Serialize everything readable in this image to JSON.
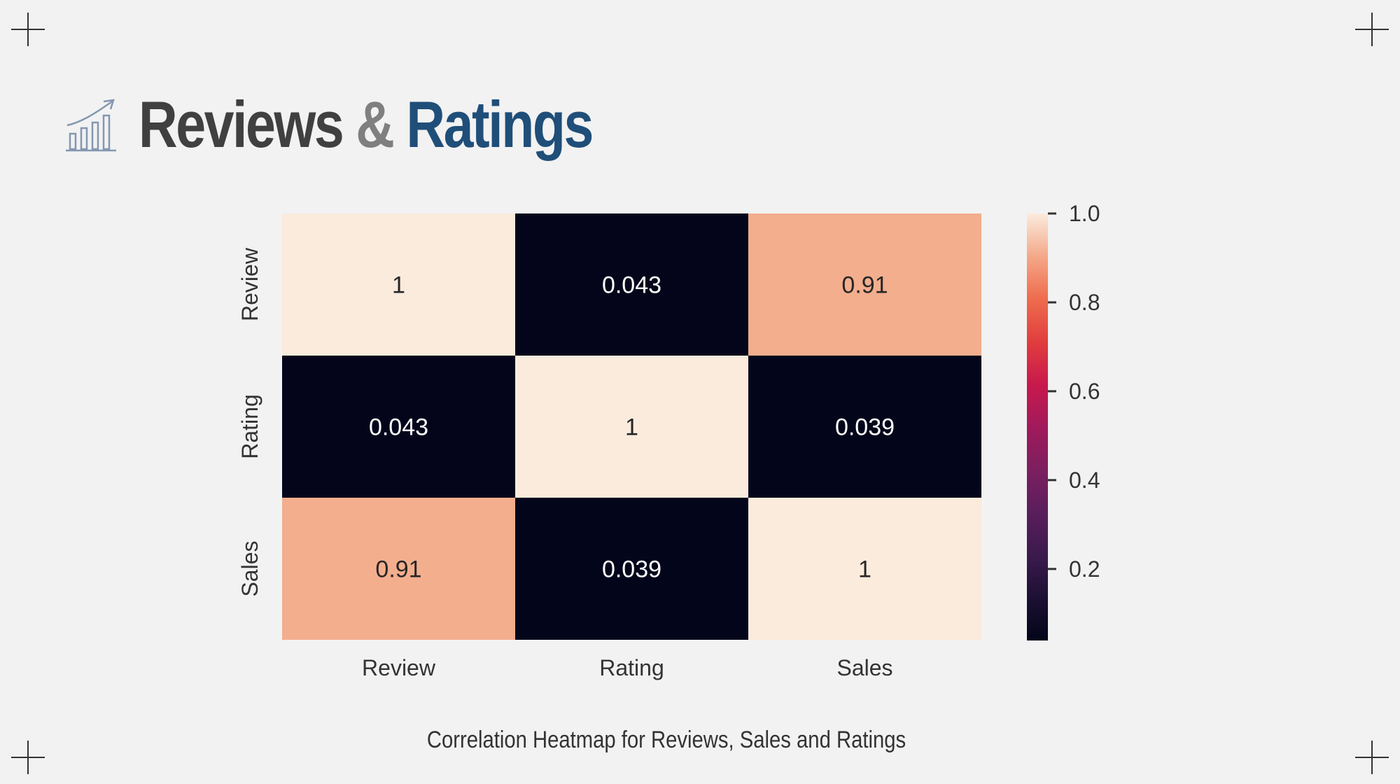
{
  "title": {
    "part1": "Reviews",
    "part2": "&",
    "part3": "Ratings",
    "icon": "chart-growth-icon",
    "colors": {
      "part1": "#404040",
      "part2": "#7f7f7f",
      "part3": "#1f4e79"
    }
  },
  "caption": "Correlation Heatmap for Reviews, Sales and Ratings",
  "chart_data": {
    "type": "heatmap",
    "x_labels": [
      "Review",
      "Rating",
      "Sales"
    ],
    "y_labels": [
      "Review",
      "Rating",
      "Sales"
    ],
    "values": [
      [
        1,
        0.043,
        0.91
      ],
      [
        0.043,
        1,
        0.039
      ],
      [
        0.91,
        0.039,
        1
      ]
    ],
    "cell_labels": [
      [
        "1",
        "0.043",
        "0.91"
      ],
      [
        "0.043",
        "1",
        "0.039"
      ],
      [
        "0.91",
        "0.039",
        "1"
      ]
    ],
    "colorbar": {
      "range": [
        0.039,
        1
      ],
      "ticks": [
        0.2,
        0.4,
        0.6,
        0.8,
        1.0
      ],
      "tick_labels": [
        "0.2",
        "0.4",
        "0.6",
        "0.8",
        "1.0"
      ],
      "colormap": "rocket"
    }
  }
}
